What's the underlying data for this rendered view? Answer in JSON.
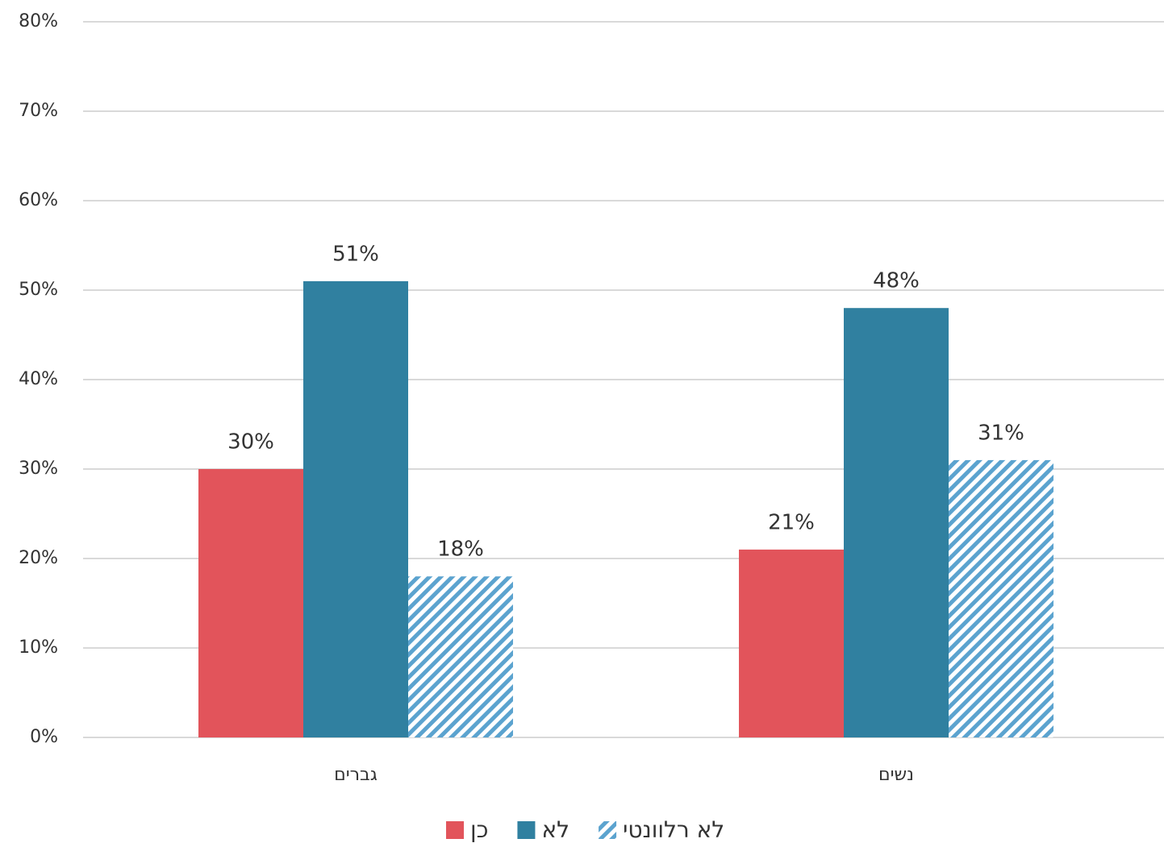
{
  "chart_data": {
    "type": "bar",
    "categories": [
      "גברים",
      "נשים"
    ],
    "series": [
      {
        "name": "כן",
        "color": "#e2545b",
        "values": [
          30,
          21
        ],
        "value_labels": [
          "30%",
          "21%"
        ]
      },
      {
        "name": "לא",
        "color": "#3080a0",
        "values": [
          51,
          48
        ],
        "value_labels": [
          "51%",
          "48%"
        ]
      },
      {
        "name": "לא רלוונטי",
        "color": "#5ba3cf",
        "hatch": true,
        "values": [
          18,
          31
        ],
        "value_labels": [
          "18%",
          "31%"
        ]
      }
    ],
    "ylim": [
      0,
      80
    ],
    "yticks": [
      {
        "value": 0,
        "label": "0%"
      },
      {
        "value": 10,
        "label": "10%"
      },
      {
        "value": 20,
        "label": "20%"
      },
      {
        "value": 30,
        "label": "30%"
      },
      {
        "value": 40,
        "label": "40%"
      },
      {
        "value": 50,
        "label": "50%"
      },
      {
        "value": 60,
        "label": "60%"
      },
      {
        "value": 70,
        "label": "70%"
      },
      {
        "value": 80,
        "label": "80%"
      }
    ],
    "grid": true,
    "legend": "bottom"
  }
}
